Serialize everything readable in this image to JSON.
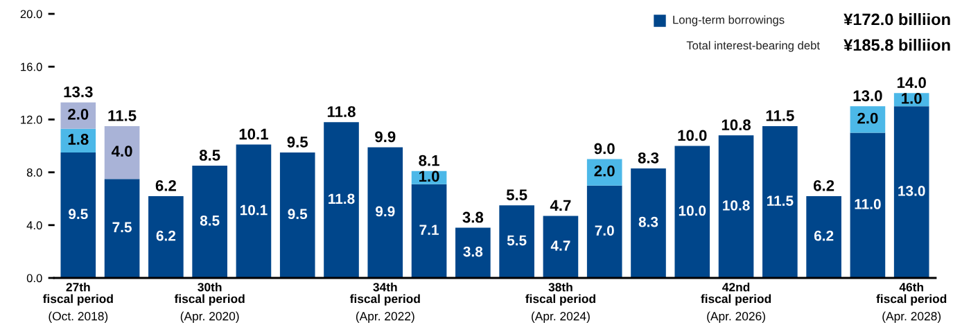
{
  "chart_data": {
    "type": "bar",
    "stacked": true,
    "categories": [
      "27th\nfiscal period\n(Oct. 2018)",
      null,
      null,
      "30th\nfiscal period\n(Apr. 2020)",
      null,
      null,
      null,
      "34th\nfiscal period\n(Apr. 2022)",
      null,
      null,
      null,
      "38th\nfiscal period\n(Apr. 2024)",
      null,
      null,
      null,
      "42nd\nfiscal period\n(Apr. 2026)",
      null,
      null,
      null,
      "46th\nfiscal period\n(Apr. 2028)"
    ],
    "series": [
      {
        "name": "Long-term borrowings",
        "color": "#00468b",
        "values": [
          9.5,
          7.5,
          6.2,
          8.5,
          10.1,
          9.5,
          11.8,
          9.9,
          7.1,
          3.8,
          5.5,
          4.7,
          7.0,
          8.3,
          10.0,
          10.8,
          11.5,
          6.2,
          11.0,
          13.0
        ],
        "value_labels": [
          "9.5",
          "7.5",
          "6.2",
          "8.5",
          "10.1",
          "9.5",
          "11.8",
          "9.9",
          "7.1",
          "3.8",
          "5.5",
          "4.7",
          "7.0",
          "8.3",
          "10.0",
          "10.8",
          "11.5",
          "6.2",
          "11.0",
          "13.0"
        ]
      },
      {
        "color": "#4cb8e8",
        "values": [
          1.8,
          null,
          null,
          null,
          null,
          null,
          null,
          null,
          1.0,
          null,
          null,
          null,
          2.0,
          null,
          null,
          null,
          null,
          null,
          2.0,
          1.0
        ],
        "value_labels": [
          "1.8",
          null,
          null,
          null,
          null,
          null,
          null,
          null,
          "1.0",
          null,
          null,
          null,
          "2.0",
          null,
          null,
          null,
          null,
          null,
          "2.0",
          "1.0"
        ]
      },
      {
        "color": "#a9b3d7",
        "values": [
          2.0,
          4.0,
          null,
          null,
          null,
          null,
          null,
          null,
          null,
          null,
          null,
          null,
          null,
          null,
          null,
          null,
          null,
          null,
          null,
          null
        ],
        "value_labels": [
          "2.0",
          "4.0",
          null,
          null,
          null,
          null,
          null,
          null,
          null,
          null,
          null,
          null,
          null,
          null,
          null,
          null,
          null,
          null,
          null,
          null
        ]
      }
    ],
    "totals": [
      "13.3",
      "11.5",
      "6.2",
      "8.5",
      "10.1",
      "9.5",
      "11.8",
      "9.9",
      "8.1",
      "3.8",
      "5.5",
      "4.7",
      "9.0",
      "8.3",
      "10.0",
      "10.8",
      "11.5",
      "6.2",
      "13.0",
      "14.0"
    ],
    "ylim": [
      0,
      20.0
    ],
    "yticks": [
      {
        "value": 0,
        "label": "0.0"
      },
      {
        "value": 4,
        "label": "4.0"
      },
      {
        "value": 8,
        "label": "8.0"
      },
      {
        "value": 12,
        "label": "12.0"
      },
      {
        "value": 16,
        "label": "16.0"
      },
      {
        "value": 20,
        "label": "20.0"
      }
    ],
    "legend": "top right",
    "grid": false,
    "annotations": [
      "¥172.0 billiion",
      "Total interest-bearing debt",
      "¥185.8 billiion"
    ]
  }
}
